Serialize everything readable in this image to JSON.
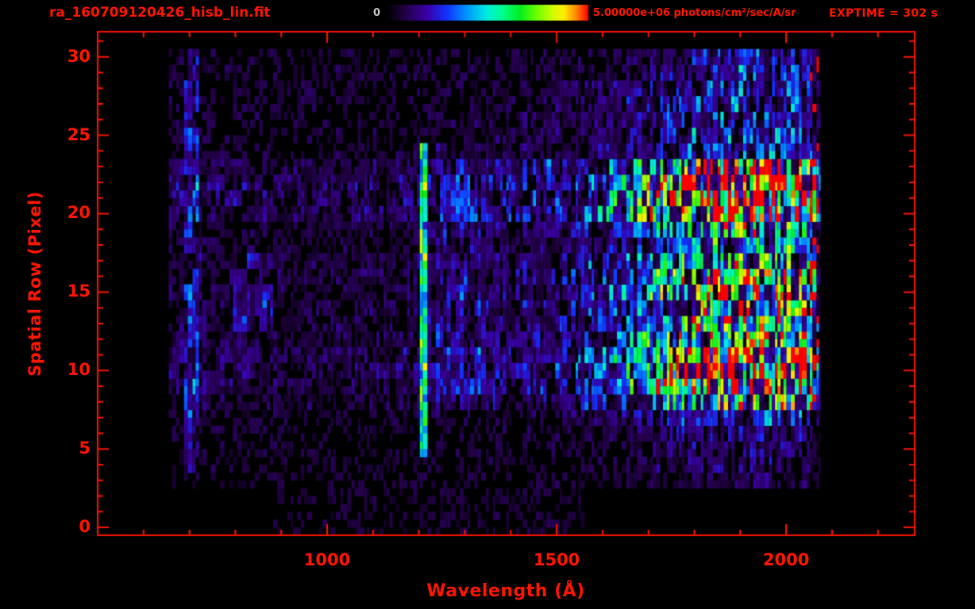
{
  "header": {
    "filename": "ra_160709120426_hisb_lin.fit",
    "exptime_label": "EXPTIME = 302 s"
  },
  "chart_data": {
    "type": "heatmap",
    "title": "ra_160709120426_hisb_lin.fit",
    "xlabel": "Wavelength (Å)",
    "ylabel": "Spatial Row (Pixel)",
    "x_range": [
      500,
      2280
    ],
    "y_range": [
      -0.5,
      31.6
    ],
    "x_ticks": [
      1000,
      1500,
      2000
    ],
    "x_minor_step": 100,
    "y_ticks": [
      0,
      5,
      10,
      15,
      20,
      25,
      30
    ],
    "y_minor_step": 1,
    "colorbar": {
      "min_label": "0",
      "max_label": "5.00000e+06 photons/cm²/sec/A/sr"
    },
    "axis_color": "#ff1500",
    "background_color": "#000000",
    "colormap": [
      [
        0.0,
        "#000000"
      ],
      [
        0.1,
        "#25004d"
      ],
      [
        0.2,
        "#3a00a8"
      ],
      [
        0.3,
        "#1133ff"
      ],
      [
        0.4,
        "#0099ff"
      ],
      [
        0.5,
        "#00eedd"
      ],
      [
        0.58,
        "#00ff88"
      ],
      [
        0.66,
        "#00ee22"
      ],
      [
        0.74,
        "#66ff00"
      ],
      [
        0.82,
        "#ccff00"
      ],
      [
        0.88,
        "#ffee00"
      ],
      [
        0.94,
        "#ff8800"
      ],
      [
        1.0,
        "#ff0000"
      ]
    ],
    "data_extent": {
      "wavelength": [
        655,
        2075
      ],
      "rows": [
        0,
        30
      ]
    },
    "sparse_bottom_rows": {
      "rows": [
        0,
        2
      ],
      "wavelength": [
        880,
        1560
      ]
    },
    "row_strength": [
      0.02,
      0.04,
      0.05,
      0.06,
      0.09,
      0.11,
      0.13,
      0.22,
      0.55,
      0.8,
      0.92,
      0.85,
      0.65,
      0.58,
      0.62,
      0.65,
      0.66,
      0.6,
      0.36,
      0.52,
      0.95,
      1.0,
      0.95,
      0.78,
      0.28,
      0.26,
      0.22,
      0.24,
      0.22,
      0.2,
      0.16
    ],
    "continuum_points": [
      [
        655,
        0.1
      ],
      [
        700,
        0.12
      ],
      [
        760,
        0.08
      ],
      [
        850,
        0.08
      ],
      [
        950,
        0.07
      ],
      [
        1050,
        0.08
      ],
      [
        1150,
        0.09
      ],
      [
        1190,
        0.11
      ],
      [
        1240,
        0.14
      ],
      [
        1320,
        0.16
      ],
      [
        1400,
        0.17
      ],
      [
        1480,
        0.2
      ],
      [
        1560,
        0.26
      ],
      [
        1640,
        0.38
      ],
      [
        1700,
        0.55
      ],
      [
        1750,
        0.75
      ],
      [
        1800,
        0.92
      ],
      [
        1860,
        1.0
      ],
      [
        1960,
        1.0
      ],
      [
        2020,
        0.97
      ],
      [
        2045,
        0.9
      ],
      [
        2060,
        0.55
      ],
      [
        2075,
        0.2
      ]
    ],
    "emission_line": {
      "wavelength": 1210,
      "width": 18,
      "rows": [
        5,
        24
      ],
      "strength": 0.52
    },
    "features": [
      {
        "name": "left-edge-stripe",
        "wavelength": [
          688,
          715
        ],
        "rows": [
          4,
          30
        ],
        "boost": 0.12
      },
      {
        "name": "blue-patch-mid-left",
        "wavelength": [
          790,
          880
        ],
        "rows": [
          13,
          17
        ],
        "boost": 0.09
      },
      {
        "name": "post-line-glow",
        "wavelength": [
          1230,
          1330
        ],
        "rows": [
          8,
          24
        ],
        "boost": 0.04
      }
    ],
    "red_edge": {
      "wavelength": [
        2048,
        2068
      ],
      "probability": 0.18
    },
    "noise_seed": 20160709
  }
}
